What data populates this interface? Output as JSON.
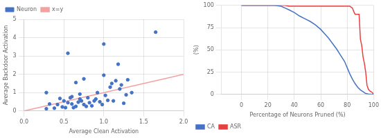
{
  "chart_data": [
    {
      "type": "scatter",
      "xlabel": "Average Clean Activation",
      "ylabel": "Average Backdoor Activation",
      "xlim": [
        0,
        2
      ],
      "ylim": [
        0,
        5
      ],
      "xticks": [
        {
          "value": 0,
          "label": "0.0"
        },
        {
          "value": 0.5,
          "label": "0.5"
        },
        {
          "value": 1,
          "label": "1.0"
        },
        {
          "value": 1.5,
          "label": "1.5"
        },
        {
          "value": 2,
          "label": "2.0"
        }
      ],
      "yticks": [
        0,
        1,
        2,
        3,
        4,
        5
      ],
      "grid": true,
      "legend": "upper left",
      "series": [
        {
          "name": "Neuron",
          "type": "scatter",
          "color": "#4472C4",
          "x": [
            0.28,
            0.32,
            0.38,
            0.42,
            0.45,
            0.48,
            0.5,
            0.52,
            0.55,
            0.55,
            0.58,
            0.6,
            0.62,
            0.65,
            0.65,
            0.68,
            0.7,
            0.72,
            0.75,
            0.75,
            0.78,
            0.8,
            0.82,
            0.85,
            0.88,
            0.9,
            0.92,
            0.95,
            0.98,
            1.0,
            1.0,
            1.02,
            1.05,
            1.08,
            1.1,
            1.12,
            1.15,
            1.18,
            1.2,
            1.22,
            1.25,
            1.28,
            1.3,
            1.35,
            1.65,
            0.6,
            0.7,
            0.28
          ],
          "values": [
            1.0,
            0.38,
            0.15,
            0.35,
            0.68,
            0.22,
            0.55,
            0.18,
            0.45,
            3.15,
            0.72,
            0.38,
            0.18,
            0.25,
            1.55,
            0.48,
            0.65,
            0.55,
            0.35,
            1.75,
            0.25,
            0.72,
            0.45,
            0.28,
            0.55,
            0.65,
            1.0,
            0.5,
            0.35,
            1.95,
            3.65,
            0.85,
            0.58,
            1.3,
            1.5,
            0.55,
            1.65,
            2.55,
            1.2,
            1.42,
            0.42,
            0.88,
            1.7,
            1.0,
            4.3,
            0.78,
            0.92,
            0.12
          ]
        },
        {
          "name": "x=y",
          "type": "line",
          "color": "#F4A0A0",
          "x": [
            0,
            2
          ],
          "values": [
            0,
            2
          ]
        }
      ]
    },
    {
      "type": "line",
      "xlabel": "Percentage of Neurons Pruned (%)",
      "ylabel": "(%)",
      "xlim": [
        -15,
        100
      ],
      "ylim": [
        0,
        100
      ],
      "xticks": [
        0,
        20,
        40,
        60,
        80,
        100
      ],
      "yticks": [
        0,
        25,
        50,
        75,
        100
      ],
      "grid": true,
      "legend": "lower left",
      "series": [
        {
          "name": "CA",
          "type": "line",
          "color": "#4472C4",
          "x": [
            0,
            5,
            10,
            15,
            20,
            25,
            30,
            33,
            36,
            40,
            44,
            48,
            52,
            56,
            60,
            63,
            66,
            69,
            72,
            75,
            78,
            80,
            82,
            84,
            86,
            88,
            90,
            92,
            94,
            96,
            98,
            100
          ],
          "values": [
            100,
            100,
            100,
            100,
            100,
            100,
            99,
            97,
            95,
            92,
            88,
            85,
            82,
            78,
            73,
            68,
            63,
            57,
            51,
            44,
            37,
            30,
            23,
            17,
            12,
            8,
            5,
            3,
            1,
            0.5,
            0.2,
            0
          ]
        },
        {
          "name": "ASR",
          "type": "line",
          "color": "#E84040",
          "x": [
            0,
            5,
            10,
            15,
            20,
            25,
            30,
            33,
            36,
            40,
            44,
            48,
            52,
            56,
            60,
            63,
            66,
            69,
            72,
            75,
            78,
            80,
            82,
            84,
            85,
            86,
            87,
            88,
            89,
            90,
            91,
            92,
            93,
            94,
            95,
            96,
            97,
            98,
            99,
            100
          ],
          "values": [
            100,
            100,
            100,
            100,
            100,
            100,
            100,
            100,
            99,
            99,
            99,
            99,
            99,
            99,
            99,
            99,
            99,
            99,
            99,
            99,
            99,
            99,
            99,
            97,
            93,
            90,
            90,
            90,
            90,
            62,
            55,
            42,
            35,
            25,
            10,
            6,
            4,
            3,
            2,
            0
          ]
        }
      ]
    }
  ]
}
